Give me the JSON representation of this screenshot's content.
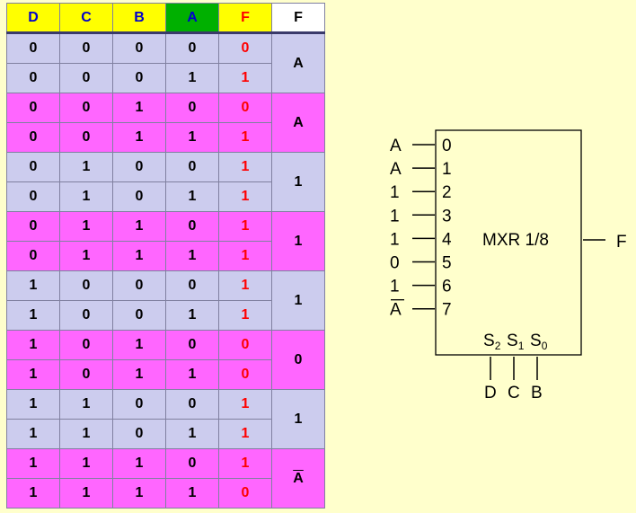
{
  "table": {
    "headers": [
      {
        "label": "D",
        "color": "#0000cc",
        "bg": "#ffff00"
      },
      {
        "label": "C",
        "color": "#0000cc",
        "bg": "#ffff00"
      },
      {
        "label": "B",
        "color": "#0000cc",
        "bg": "#ffff00"
      },
      {
        "label": "A",
        "color": "#0000cc",
        "bg": "#00b000"
      },
      {
        "label": "F",
        "color": "#ff0000",
        "bg": "#ffff00"
      },
      {
        "label": "F",
        "color": "#000000",
        "bg": "#ffffff"
      }
    ],
    "rows": [
      [
        "0",
        "0",
        "0",
        "0",
        "0"
      ],
      [
        "0",
        "0",
        "0",
        "1",
        "1"
      ],
      [
        "0",
        "0",
        "1",
        "0",
        "0"
      ],
      [
        "0",
        "0",
        "1",
        "1",
        "1"
      ],
      [
        "0",
        "1",
        "0",
        "0",
        "1"
      ],
      [
        "0",
        "1",
        "0",
        "1",
        "1"
      ],
      [
        "0",
        "1",
        "1",
        "0",
        "1"
      ],
      [
        "0",
        "1",
        "1",
        "1",
        "1"
      ],
      [
        "1",
        "0",
        "0",
        "0",
        "1"
      ],
      [
        "1",
        "0",
        "0",
        "1",
        "1"
      ],
      [
        "1",
        "0",
        "1",
        "0",
        "0"
      ],
      [
        "1",
        "0",
        "1",
        "1",
        "0"
      ],
      [
        "1",
        "1",
        "0",
        "0",
        "1"
      ],
      [
        "1",
        "1",
        "0",
        "1",
        "1"
      ],
      [
        "1",
        "1",
        "1",
        "0",
        "1"
      ],
      [
        "1",
        "1",
        "1",
        "1",
        "0"
      ]
    ],
    "mux_inputs": [
      {
        "text": "A",
        "overline": false
      },
      {
        "text": "A",
        "overline": false
      },
      {
        "text": "1",
        "overline": false
      },
      {
        "text": "1",
        "overline": false
      },
      {
        "text": "1",
        "overline": false
      },
      {
        "text": "0",
        "overline": false
      },
      {
        "text": "1",
        "overline": false
      },
      {
        "text": "A",
        "overline": true
      }
    ]
  },
  "mux": {
    "label": "MXR 1/8",
    "output_label": "F",
    "inputs": [
      {
        "signal": "A",
        "overline": false,
        "pin": "0"
      },
      {
        "signal": "A",
        "overline": false,
        "pin": "1"
      },
      {
        "signal": "1",
        "overline": false,
        "pin": "2"
      },
      {
        "signal": "1",
        "overline": false,
        "pin": "3"
      },
      {
        "signal": "1",
        "overline": false,
        "pin": "4"
      },
      {
        "signal": "0",
        "overline": false,
        "pin": "5"
      },
      {
        "signal": "1",
        "overline": false,
        "pin": "6"
      },
      {
        "signal": "A",
        "overline": true,
        "pin": "7"
      }
    ],
    "selects": [
      {
        "base": "S",
        "sub": "2",
        "signal": "D"
      },
      {
        "base": "S",
        "sub": "1",
        "signal": "C"
      },
      {
        "base": "S",
        "sub": "0",
        "signal": "B"
      }
    ]
  },
  "colors": {
    "group_even": "#ccccee",
    "group_odd": "#ff66ff",
    "output_red": "#ff0000",
    "header_blue": "#0000cc"
  }
}
